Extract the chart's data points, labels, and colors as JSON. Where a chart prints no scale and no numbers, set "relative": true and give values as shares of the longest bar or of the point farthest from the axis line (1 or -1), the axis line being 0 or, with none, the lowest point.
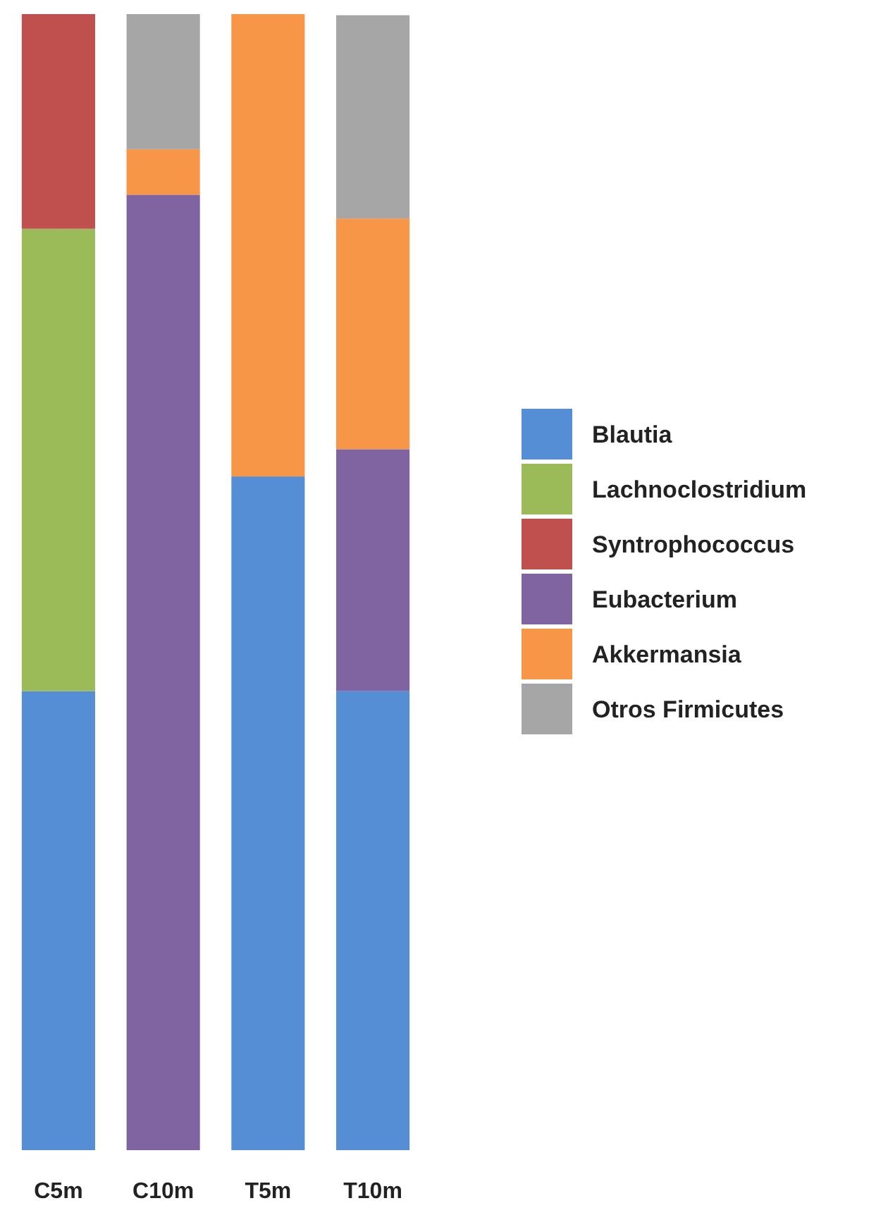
{
  "chart_data": {
    "type": "bar",
    "relative": true,
    "stacked": true,
    "legend": "right",
    "categories": [
      "C5m",
      "C10m",
      "T5m",
      "T10m"
    ],
    "series": [
      {
        "name": "Blautia",
        "color": "#558ed5",
        "values": [
          0.404,
          0,
          0.593,
          0.404
        ]
      },
      {
        "name": "Lachnoclostridium",
        "color": "#9bbb59",
        "values": [
          0.407,
          0,
          0,
          0
        ]
      },
      {
        "name": "Syntrophococcus",
        "color": "#c0504d",
        "values": [
          0.189,
          0,
          0,
          0
        ]
      },
      {
        "name": "Eubacterium",
        "color": "#8064a2",
        "values": [
          0,
          0.841,
          0,
          0.213
        ]
      },
      {
        "name": "Akkermansia",
        "color": "#f79646",
        "values": [
          0,
          0.04,
          0.407,
          0.203
        ]
      },
      {
        "name": "Otros Firmicutes",
        "color": "#a6a6a6",
        "values": [
          0,
          0.119,
          0,
          0.179
        ]
      }
    ]
  }
}
